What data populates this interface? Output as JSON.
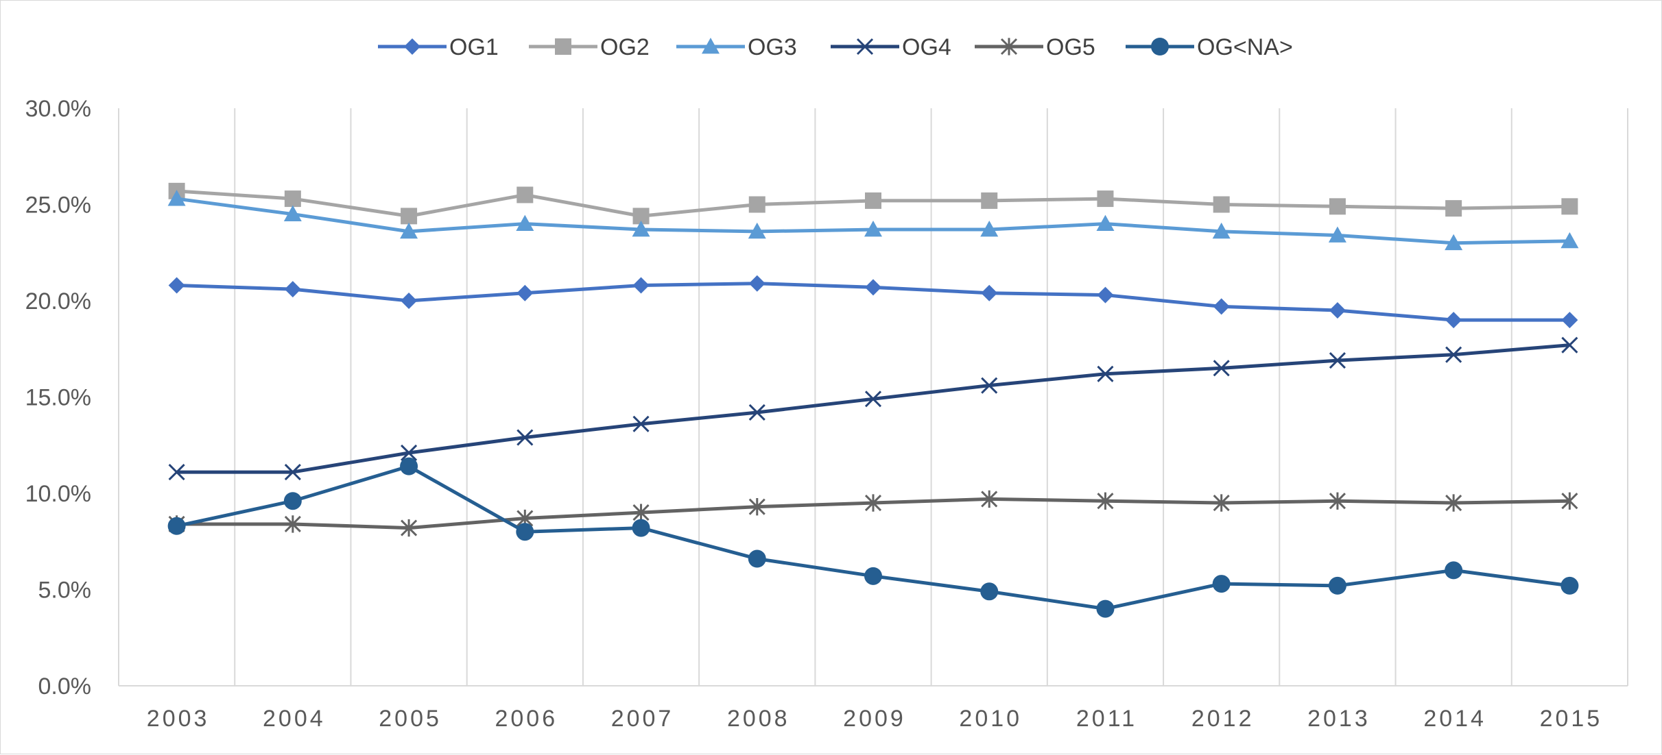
{
  "chart_data": {
    "type": "line",
    "title": "",
    "xlabel": "",
    "ylabel": "",
    "categories": [
      "2003",
      "2004",
      "2005",
      "2006",
      "2007",
      "2008",
      "2009",
      "2010",
      "2011",
      "2012",
      "2013",
      "2014",
      "2015"
    ],
    "ylim": [
      0,
      0.3
    ],
    "y_ticks": [
      0,
      0.05,
      0.1,
      0.15,
      0.2,
      0.25,
      0.3
    ],
    "y_tick_labels": [
      "0.0%",
      "5.0%",
      "10.0%",
      "15.0%",
      "20.0%",
      "25.0%",
      "30.0%"
    ],
    "grid": "vertical",
    "legend_position": "top",
    "series": [
      {
        "name": "OG1",
        "marker": "diamond",
        "color": "#4472c4",
        "values": [
          0.208,
          0.206,
          0.2,
          0.204,
          0.208,
          0.209,
          0.207,
          0.204,
          0.203,
          0.197,
          0.195,
          0.19,
          0.19
        ]
      },
      {
        "name": "OG2",
        "marker": "square",
        "color": "#a5a5a5",
        "values": [
          0.257,
          0.253,
          0.244,
          0.255,
          0.244,
          0.25,
          0.252,
          0.252,
          0.253,
          0.25,
          0.249,
          0.248,
          0.249
        ]
      },
      {
        "name": "OG3",
        "marker": "triangle",
        "color": "#5b9bd5",
        "values": [
          0.253,
          0.245,
          0.236,
          0.24,
          0.237,
          0.236,
          0.237,
          0.237,
          0.24,
          0.236,
          0.234,
          0.23,
          0.231
        ]
      },
      {
        "name": "OG4",
        "marker": "x",
        "color": "#264478",
        "values": [
          0.111,
          0.111,
          0.121,
          0.129,
          0.136,
          0.142,
          0.149,
          0.156,
          0.162,
          0.165,
          0.169,
          0.172,
          0.177
        ]
      },
      {
        "name": "OG5",
        "marker": "star",
        "color": "#636363",
        "values": [
          0.084,
          0.084,
          0.082,
          0.087,
          0.09,
          0.093,
          0.095,
          0.097,
          0.096,
          0.095,
          0.096,
          0.095,
          0.096
        ]
      },
      {
        "name": "OG<NA>",
        "marker": "circle",
        "color": "#255e91",
        "values": [
          0.083,
          0.096,
          0.114,
          0.08,
          0.082,
          0.066,
          0.057,
          0.049,
          0.04,
          0.053,
          0.052,
          0.06,
          0.052
        ]
      }
    ]
  }
}
